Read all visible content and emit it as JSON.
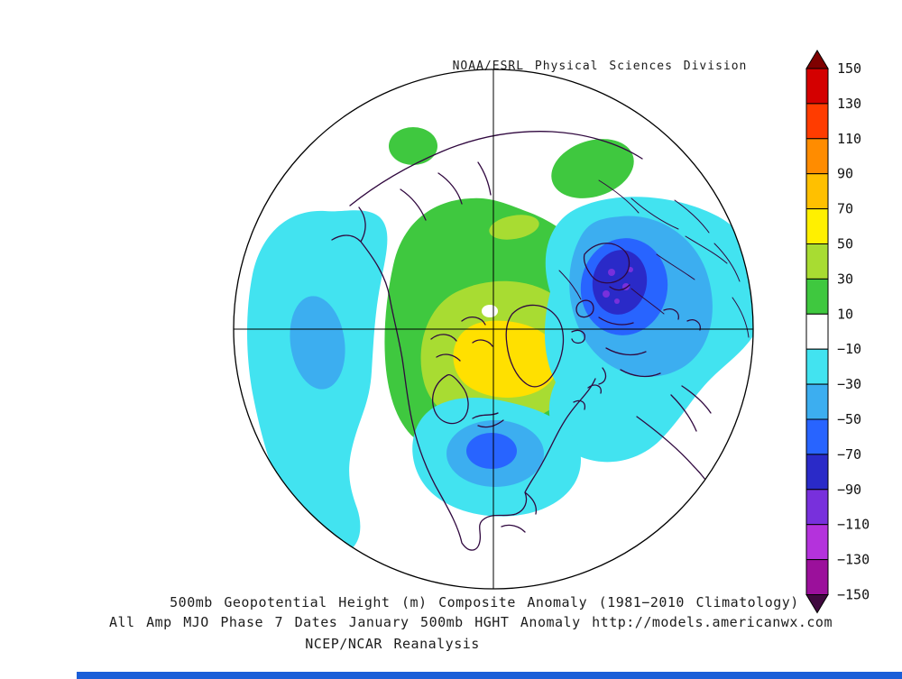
{
  "header": {
    "title": "NOAA/ESRL Physical Sciences Division"
  },
  "captions": {
    "line1": "500mb Geopotential Height (m) Composite Anomaly (1981−2010 Climatology)",
    "line2": "All Amp MJO Phase 7 Dates January 500mb HGHT Anomaly http://models.americanwx.com",
    "line3": "NCEP/NCAR Reanalysis"
  },
  "colorbar": {
    "ticks": [
      "150",
      "130",
      "110",
      "90",
      "70",
      "50",
      "30",
      "10",
      "−10",
      "−30",
      "−50",
      "−70",
      "−90",
      "−110",
      "−130",
      "−150"
    ],
    "colors": [
      "#7F0000",
      "#D40000",
      "#FF3C00",
      "#FF8C00",
      "#FFC000",
      "#FFF000",
      "#A8DC32",
      "#3FC83F",
      "#FFFFFF",
      "#42E3F0",
      "#3CAEF0",
      "#2864FF",
      "#2A2AC8",
      "#7830DC",
      "#B432DC",
      "#9B109B",
      "#40093F"
    ]
  },
  "chart_data": {
    "type": "heatmap",
    "title": "500mb Geopotential Height (m) Composite Anomaly (1981−2010 Climatology)",
    "subtitle": "All Amp MJO Phase 7 Dates January 500mb HGHT Anomaly",
    "source": "NCEP/NCAR Reanalysis",
    "provider": "NOAA/ESRL Physical Sciences Division",
    "units": "m",
    "scale_range": [
      -150,
      150
    ],
    "scale_step": 20,
    "projection": "Northern Hemisphere polar view",
    "anomaly_centers": [
      {
        "region": "North Pacific",
        "sign": "negative",
        "approx_value": -40
      },
      {
        "region": "Europe / western Russia",
        "sign": "negative",
        "approx_value": -90
      },
      {
        "region": "Southeastern United States",
        "sign": "negative",
        "approx_value": -60
      },
      {
        "region": "North Atlantic band",
        "sign": "negative",
        "approx_value": -20
      },
      {
        "region": "Arctic Canada / Greenland",
        "sign": "positive",
        "approx_value": 70
      },
      {
        "region": "Northern Siberia",
        "sign": "positive",
        "approx_value": 20
      },
      {
        "region": "Central Russia",
        "sign": "positive",
        "approx_value": 20
      }
    ]
  }
}
